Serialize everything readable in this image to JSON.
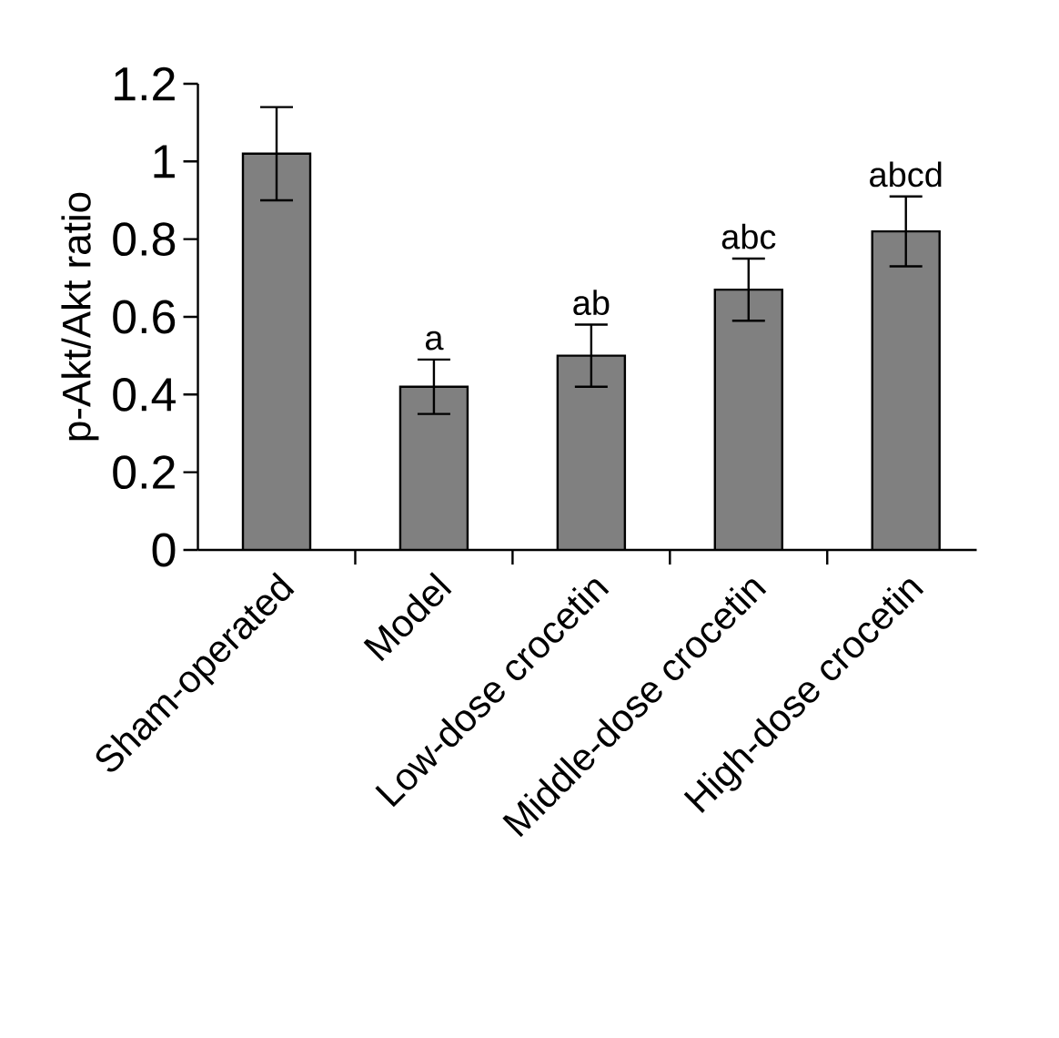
{
  "chart_data": {
    "type": "bar",
    "ylabel": "p-Akt/Akt ratio",
    "categories": [
      "Sham-operated",
      "Model",
      "Low-dose crocetin",
      "Middle-dose crocetin",
      "High-dose crocetin"
    ],
    "values": [
      1.02,
      0.42,
      0.5,
      0.67,
      0.82
    ],
    "errors": [
      0.12,
      0.07,
      0.08,
      0.08,
      0.09
    ],
    "color": "#808080",
    "ylim": [
      0,
      1.2
    ],
    "yticks": [
      0,
      0.2,
      0.4,
      0.6,
      0.8,
      1,
      1.2
    ],
    "annotations": [
      {
        "text": "a",
        "x": "Model",
        "y": 0.42
      },
      {
        "text": "ab",
        "x": "Low-dose crocetin",
        "y": 0.5
      },
      {
        "text": "abc",
        "x": "Middle-dose crocetin",
        "y": 0.67
      },
      {
        "text": "abcd",
        "x": "High-dose crocetin",
        "y": 0.82
      }
    ]
  }
}
